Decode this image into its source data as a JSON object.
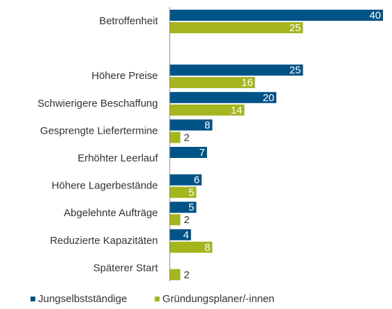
{
  "chart_data": {
    "type": "barh",
    "categories": [
      "Betroffenheit",
      null,
      "Höhere Preise",
      "Schwierigere Beschaffung",
      "Gesprengte Liefertermine",
      "Erhöhter Leerlauf",
      "Höhere Lagerbestände",
      "Abgelehnte Aufträge",
      "Reduzierte Kapazitäten",
      "Späterer Start"
    ],
    "series": [
      {
        "name": "Jungselbstständige",
        "color": "#005387",
        "values": [
          40,
          null,
          25,
          20,
          8,
          7,
          6,
          5,
          4,
          null
        ]
      },
      {
        "name": "Gründungsplaner/-innen",
        "color": "#a5b51e",
        "values": [
          25,
          null,
          16,
          14,
          2,
          null,
          5,
          2,
          8,
          2
        ]
      }
    ],
    "xlim": [
      0,
      40
    ],
    "legend": "bottom"
  }
}
